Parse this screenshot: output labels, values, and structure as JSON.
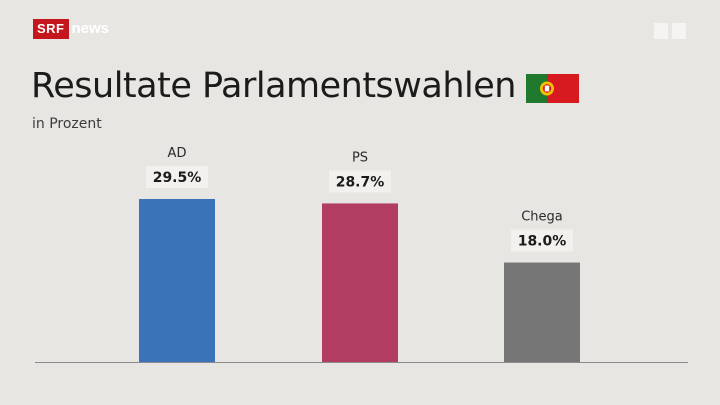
{
  "brand": {
    "srf": "SRF",
    "news": "news"
  },
  "header": {
    "title": "Resultate Parlamentswahlen",
    "subtitle": "in Prozent",
    "flag_icon": "portugal-flag-icon"
  },
  "colors": {
    "background": "#e8e6e2",
    "srf_red": "#c4161c",
    "baseline": "#8a8a8a",
    "label_bg": "#f2f1ee"
  },
  "chart_data": {
    "type": "bar",
    "title": "Resultate Parlamentswahlen",
    "subtitle": "in Prozent",
    "categories": [
      "AD",
      "PS",
      "Chega"
    ],
    "values": [
      29.5,
      28.7,
      18.0
    ],
    "value_labels": [
      "29.5%",
      "28.7%",
      "18.0%"
    ],
    "colors": [
      "#3a73b8",
      "#b23d63",
      "#767676"
    ],
    "ylim": [
      0,
      29.5
    ],
    "grid": false,
    "legend": "none"
  }
}
